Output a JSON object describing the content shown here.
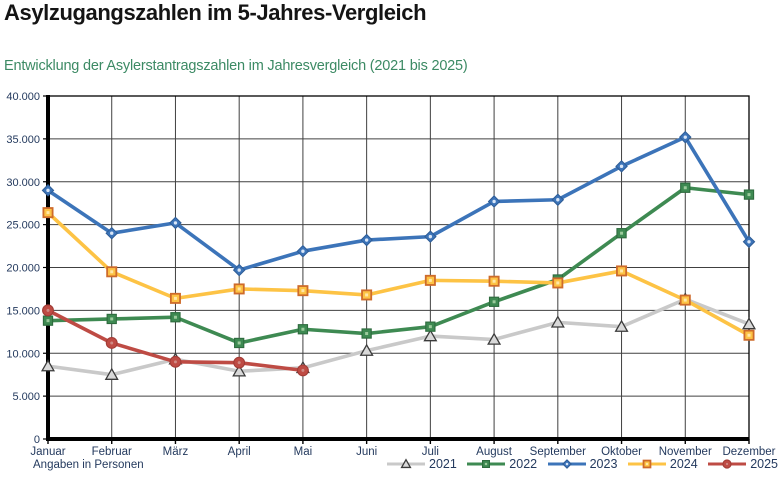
{
  "title": "Asylzugangszahlen im 5-Jahres-Vergleich",
  "subtitle": "Entwicklung der Asylerstantragszahlen im Jahresvergleich (2021 bis 2025)",
  "footnote": "Angaben in Personen",
  "chart_data": {
    "type": "line",
    "title": "Entwicklung der Asylerstantragszahlen im Jahresvergleich (2021 bis 2025)",
    "xlabel": "",
    "ylabel": "Angaben in Personen",
    "ylim": [
      0,
      40000
    ],
    "y_tick_step": 5000,
    "y_ticks": [
      "0",
      "5.000",
      "10.000",
      "15.000",
      "20.000",
      "25.000",
      "30.000",
      "35.000",
      "40.000"
    ],
    "grid": true,
    "legend_position": "bottom-right",
    "categories": [
      "Januar",
      "Februar",
      "März",
      "April",
      "Mai",
      "Juni",
      "Juli",
      "August",
      "September",
      "Oktober",
      "November",
      "Dezember"
    ],
    "series": [
      {
        "name": "2021",
        "marker": "triangle",
        "color": "#C9C9C9",
        "marker_fill": "#D9D9D9",
        "marker_stroke": "#3B3B3B",
        "marker_center": null,
        "values": [
          8500,
          7500,
          9300,
          7900,
          8300,
          10300,
          12000,
          11600,
          13600,
          13100,
          16300,
          13400
        ]
      },
      {
        "name": "2022",
        "marker": "square",
        "color": "#3E8A52",
        "marker_fill": "#3E8A52",
        "marker_stroke": "#2E6B3E",
        "marker_center": "#9CCB9C",
        "values": [
          13800,
          14000,
          14200,
          11200,
          12800,
          12300,
          13100,
          16000,
          18600,
          24000,
          29300,
          28500
        ]
      },
      {
        "name": "2023",
        "marker": "diamond",
        "color": "#3C74B9",
        "marker_fill": "#3C74B9",
        "marker_stroke": "#2E5C95",
        "marker_center": "#D9E6F7",
        "values": [
          29000,
          24000,
          25200,
          19700,
          21900,
          23200,
          23600,
          27700,
          27900,
          31800,
          35200,
          23000
        ]
      },
      {
        "name": "2024",
        "marker": "square",
        "color": "#FDC345",
        "marker_fill": "#FDC345",
        "marker_stroke": "#CE6B2B",
        "marker_center": "#FFE9A9",
        "values": [
          26400,
          19500,
          16400,
          17500,
          17300,
          16800,
          18500,
          18400,
          18200,
          19600,
          16200,
          12100
        ]
      },
      {
        "name": "2025",
        "marker": "circle",
        "color": "#BE4B44",
        "marker_fill": "#BE4B44",
        "marker_stroke": "#A23C36",
        "marker_center": "#D08A84",
        "values": [
          15000,
          11200,
          9000,
          8900,
          8000,
          null,
          null,
          null,
          null,
          null,
          null,
          null
        ]
      }
    ]
  },
  "colors": {
    "title": "#141414",
    "subtitle": "#3C8A64",
    "axis_text": "#243A5E",
    "gridline": "#404040",
    "axis": "#000000"
  }
}
